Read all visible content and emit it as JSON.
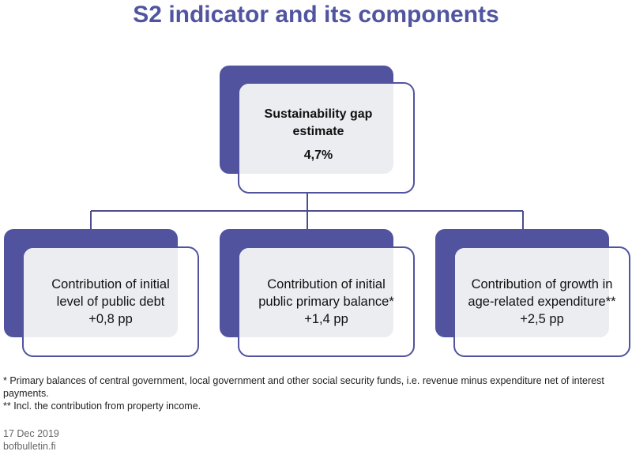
{
  "title": "S2 indicator and its components",
  "top_box": {
    "label_line1": "Sustainability gap",
    "label_line2": "estimate",
    "value": "4,7%"
  },
  "components": [
    {
      "line1": "Contribution of initial",
      "line2": "level of public debt",
      "value": "+0,8 pp"
    },
    {
      "line1": "Contribution of initial",
      "line2": "public primary balance*",
      "value": "+1,4 pp"
    },
    {
      "line1": "Contribution of growth in",
      "line2": "age-related expenditure**",
      "value": "+2,5 pp"
    }
  ],
  "notes": [
    "* Primary balances of central government, local government and other social security funds, i.e. revenue minus expenditure net of interest payments.",
    "** Incl. the contribution from property income."
  ],
  "footer": {
    "date": "17 Dec 2019",
    "site": "bofbulletin.fi"
  },
  "colors": {
    "accent": "#51539f",
    "overlap": "#ebedf1",
    "title": "#5155a0"
  }
}
